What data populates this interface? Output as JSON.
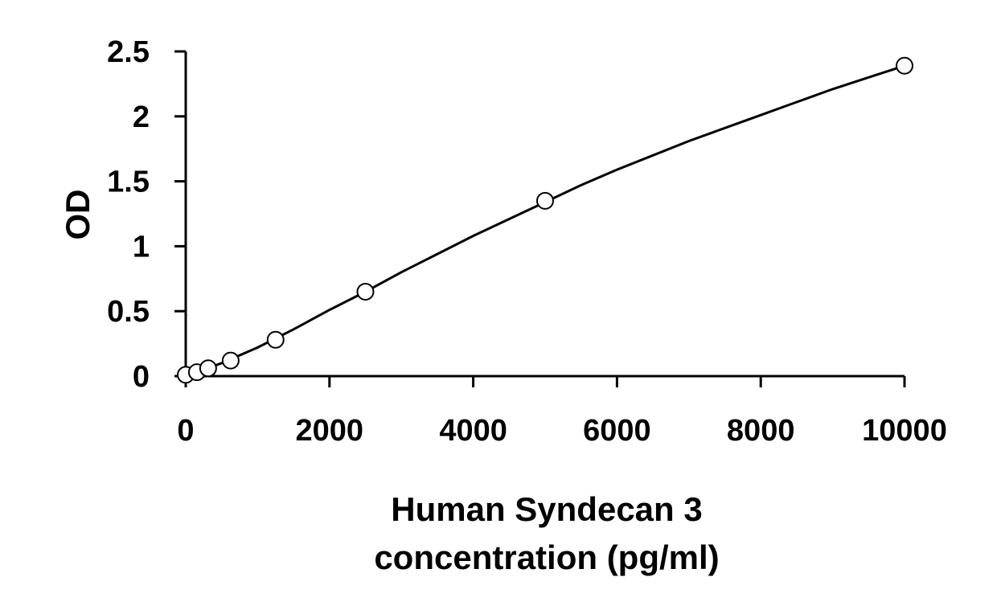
{
  "chart_data": {
    "type": "scatter",
    "title": "",
    "xlabel_lines": [
      "Human Syndecan 3",
      "concentration (pg/ml)"
    ],
    "ylabel": "OD",
    "xlim": [
      0,
      10000
    ],
    "ylim": [
      0,
      2.5
    ],
    "x_ticks": [
      "0",
      "2000",
      "4000",
      "6000",
      "8000",
      "10000"
    ],
    "y_ticks": [
      "0",
      "0.5",
      "1",
      "1.5",
      "2",
      "2.5"
    ],
    "grid": false,
    "legend": "none",
    "points": [
      {
        "x": 0,
        "y": 0.01
      },
      {
        "x": 156,
        "y": 0.03
      },
      {
        "x": 312,
        "y": 0.06
      },
      {
        "x": 625,
        "y": 0.12
      },
      {
        "x": 1250,
        "y": 0.28
      },
      {
        "x": 2500,
        "y": 0.65
      },
      {
        "x": 5000,
        "y": 1.35
      },
      {
        "x": 10000,
        "y": 2.39
      }
    ],
    "fit_curve": {
      "type": "line",
      "x": [
        0,
        500,
        1000,
        1500,
        2000,
        2500,
        3000,
        3500,
        4000,
        4500,
        5000,
        5500,
        6000,
        6500,
        7000,
        7500,
        8000,
        8500,
        9000,
        9500,
        10000
      ],
      "y": [
        0.0,
        0.1,
        0.22,
        0.36,
        0.51,
        0.65,
        0.8,
        0.94,
        1.08,
        1.21,
        1.34,
        1.47,
        1.59,
        1.7,
        1.81,
        1.91,
        2.01,
        2.11,
        2.21,
        2.3,
        2.39
      ]
    },
    "colors": {
      "marker_fill": "#ffffff",
      "marker_stroke": "#000000",
      "line": "#000000"
    }
  }
}
